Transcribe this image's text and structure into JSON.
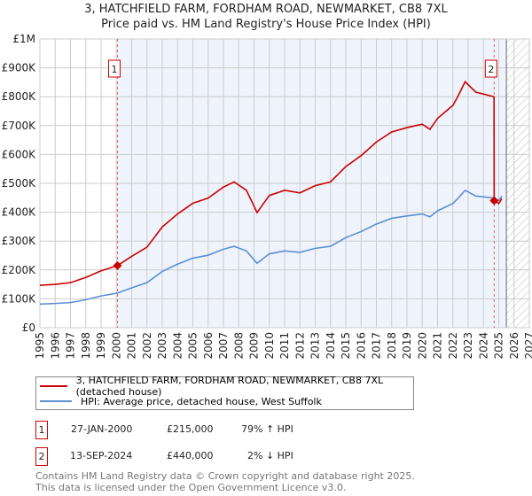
{
  "title_line1": "3, HATCHFIELD FARM, FORDHAM ROAD, NEWMARKET, CB8 7XL",
  "title_line2": "Price paid vs. HM Land Registry's House Price Index (HPI)",
  "chart_data": {
    "type": "line",
    "title": "3, HATCHFIELD FARM, FORDHAM ROAD, NEWMARKET, CB8 7XL — Price paid vs. HM Land Registry's House Price Index (HPI)",
    "xlim": [
      1995,
      2027
    ],
    "ylim": [
      0,
      1000000
    ],
    "x_ticks": [
      "1995",
      "1996",
      "1997",
      "1998",
      "1999",
      "2000",
      "2001",
      "2002",
      "2003",
      "2004",
      "2005",
      "2006",
      "2007",
      "2008",
      "2009",
      "2010",
      "2011",
      "2012",
      "2013",
      "2014",
      "2015",
      "2016",
      "2017",
      "2018",
      "2019",
      "2020",
      "2021",
      "2022",
      "2023",
      "2024",
      "2025",
      "2026",
      "2027"
    ],
    "y_ticks": [
      {
        "v": 0,
        "label": "£0"
      },
      {
        "v": 100000,
        "label": "£100K"
      },
      {
        "v": 200000,
        "label": "£200K"
      },
      {
        "v": 300000,
        "label": "£300K"
      },
      {
        "v": 400000,
        "label": "£400K"
      },
      {
        "v": 500000,
        "label": "£500K"
      },
      {
        "v": 600000,
        "label": "£600K"
      },
      {
        "v": 700000,
        "label": "£700K"
      },
      {
        "v": 800000,
        "label": "£800K"
      },
      {
        "v": 900000,
        "label": "£900K"
      },
      {
        "v": 1000000,
        "label": "£1M"
      }
    ],
    "grid": true,
    "forecast_region_start": 2025.5,
    "series": [
      {
        "name": "3, HATCHFIELD FARM, FORDHAM ROAD, NEWMARKET, CB8 7XL (detached house)",
        "color": "#cc0000",
        "x": [
          1995,
          1996,
          1997,
          1998,
          1999,
          2000.07,
          2001,
          2002,
          2003,
          2004,
          2005,
          2006,
          2007,
          2007.7,
          2008.5,
          2009.2,
          2010,
          2011,
          2012,
          2013,
          2014,
          2015,
          2016,
          2017,
          2018,
          2019,
          2020,
          2020.5,
          2021,
          2022,
          2022.3,
          2022.8,
          2023.5,
          2024.69,
          2024.7,
          2025,
          2025.2
        ],
        "y": [
          147000,
          150000,
          156000,
          174000,
          197000,
          215000,
          247000,
          279000,
          349000,
          394000,
          431000,
          449000,
          487000,
          505000,
          476000,
          399000,
          458000,
          476000,
          467000,
          492000,
          505000,
          558000,
          596000,
          643000,
          678000,
          693000,
          705000,
          687000,
          725000,
          770000,
          798000,
          852000,
          816000,
          800000,
          440000,
          430000,
          447000
        ]
      },
      {
        "name": "HPI: Average price, detached house, West Suffolk",
        "color": "#5b8fd4",
        "x": [
          1995,
          1996,
          1997,
          1998,
          1999,
          2000.07,
          2001,
          2002,
          2003,
          2004,
          2005,
          2006,
          2007,
          2007.7,
          2008.5,
          2009.2,
          2010,
          2011,
          2012,
          2013,
          2014,
          2015,
          2016,
          2017,
          2018,
          2019,
          2020,
          2020.5,
          2021,
          2022,
          2022.3,
          2022.8,
          2023.5,
          2024.7,
          2025,
          2025.2
        ],
        "y": [
          82000,
          84000,
          87000,
          97000,
          110000,
          120000,
          138000,
          156000,
          195000,
          220000,
          241000,
          251000,
          272000,
          282000,
          266000,
          223000,
          256000,
          266000,
          261000,
          275000,
          282000,
          312000,
          333000,
          359000,
          379000,
          387000,
          394000,
          384000,
          405000,
          430000,
          446000,
          476000,
          456000,
          449000,
          440000,
          456000
        ]
      }
    ],
    "annotations": [
      {
        "label": "1",
        "x": 2000.07,
        "y": 215000
      },
      {
        "label": "2",
        "x": 2024.7,
        "y": 440000
      }
    ]
  },
  "legend": [
    {
      "label": "3, HATCHFIELD FARM, FORDHAM ROAD, NEWMARKET, CB8 7XL (detached house)",
      "color": "#cc0000"
    },
    {
      "label": "HPI: Average price, detached house, West Suffolk",
      "color": "#5b8fd4"
    }
  ],
  "sales": [
    {
      "num": "1",
      "date": "27-JAN-2000",
      "price": "£215,000",
      "hpi": "79% ↑ HPI"
    },
    {
      "num": "2",
      "date": "13-SEP-2024",
      "price": "£440,000",
      "hpi": "2% ↓ HPI"
    }
  ],
  "footer_line1": "Contains HM Land Registry data © Crown copyright and database right 2025.",
  "footer_line2": "This data is licensed under the Open Government Licence v3.0."
}
